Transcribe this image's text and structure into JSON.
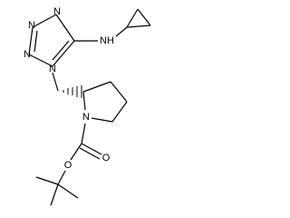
{
  "atoms": {
    "tetrazole_n1": "N",
    "tetrazole_n2": "N",
    "tetrazole_n3": "N",
    "tetrazole_n4": "N",
    "amine": "NH",
    "pyrrolidine_n": "N",
    "carbonyl_o": "O",
    "ester_o": "O"
  }
}
